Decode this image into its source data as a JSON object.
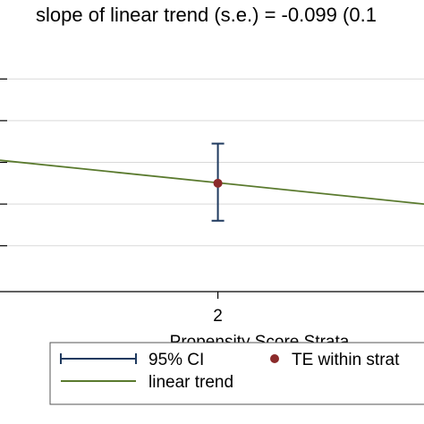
{
  "chart_data": {
    "type": "scatter",
    "annotation": "slope of linear trend (s.e.) = -0.099 (0.1",
    "xlabel": "Propensity Score Strata",
    "x_tick_labels": [
      "2"
    ],
    "x_ticks": [
      2
    ],
    "xlim": [
      0.89,
      3.05
    ],
    "ylim": [
      -0.62,
      0.53
    ],
    "y_ticks": [
      -0.4,
      -0.2,
      0,
      0.2,
      0.4
    ],
    "y_tick_labels_visible": false,
    "grid": "horizontal",
    "legend_position": "bottom",
    "legend": [
      {
        "label": "95% CI",
        "symbol": "capped-line"
      },
      {
        "label": "TE within strat",
        "symbol": "dot"
      },
      {
        "label": "linear trend",
        "symbol": "line"
      }
    ],
    "points": [
      {
        "x": 2,
        "y": -0.1,
        "ci_low": -0.28,
        "ci_high": 0.09
      }
    ],
    "trend": {
      "x": [
        0.89,
        3.05
      ],
      "y": [
        0.01,
        -0.2
      ]
    },
    "colors": {
      "ci": "#1f3a5f",
      "point": "#8b2a2a",
      "trend": "#5a7a2e",
      "grid": "#d9d9d9",
      "axis": "#000000"
    }
  }
}
